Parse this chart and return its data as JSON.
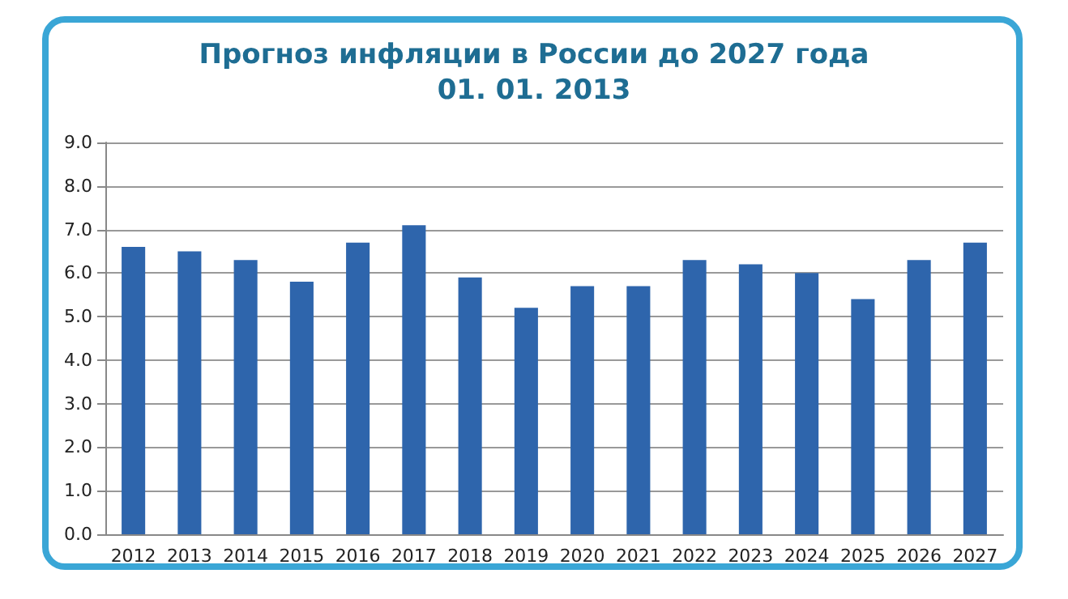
{
  "chart_data": {
    "type": "bar",
    "title": "Прогноз инфляции в России до 2027 года\n01. 01. 2013",
    "categories": [
      "2012",
      "2013",
      "2014",
      "2015",
      "2016",
      "2017",
      "2018",
      "2019",
      "2020",
      "2021",
      "2022",
      "2023",
      "2024",
      "2025",
      "2026",
      "2027"
    ],
    "values": [
      6.6,
      6.5,
      6.3,
      5.8,
      6.7,
      7.1,
      5.9,
      5.2,
      5.7,
      5.7,
      6.3,
      6.2,
      6.0,
      5.4,
      6.3,
      6.7
    ],
    "color": "#2e65ac",
    "ylim": [
      0,
      9
    ],
    "yticks": [
      {
        "value": 0,
        "label": "0.0"
      },
      {
        "value": 1,
        "label": "1.0"
      },
      {
        "value": 2,
        "label": "2.0"
      },
      {
        "value": 3,
        "label": "3.0"
      },
      {
        "value": 4,
        "label": "4.0"
      },
      {
        "value": 5,
        "label": "5.0"
      },
      {
        "value": 6,
        "label": "6.0"
      },
      {
        "value": 7,
        "label": "7.0"
      },
      {
        "value": 8,
        "label": "8.0"
      },
      {
        "value": 9,
        "label": "9.0"
      }
    ],
    "grid": "y"
  }
}
